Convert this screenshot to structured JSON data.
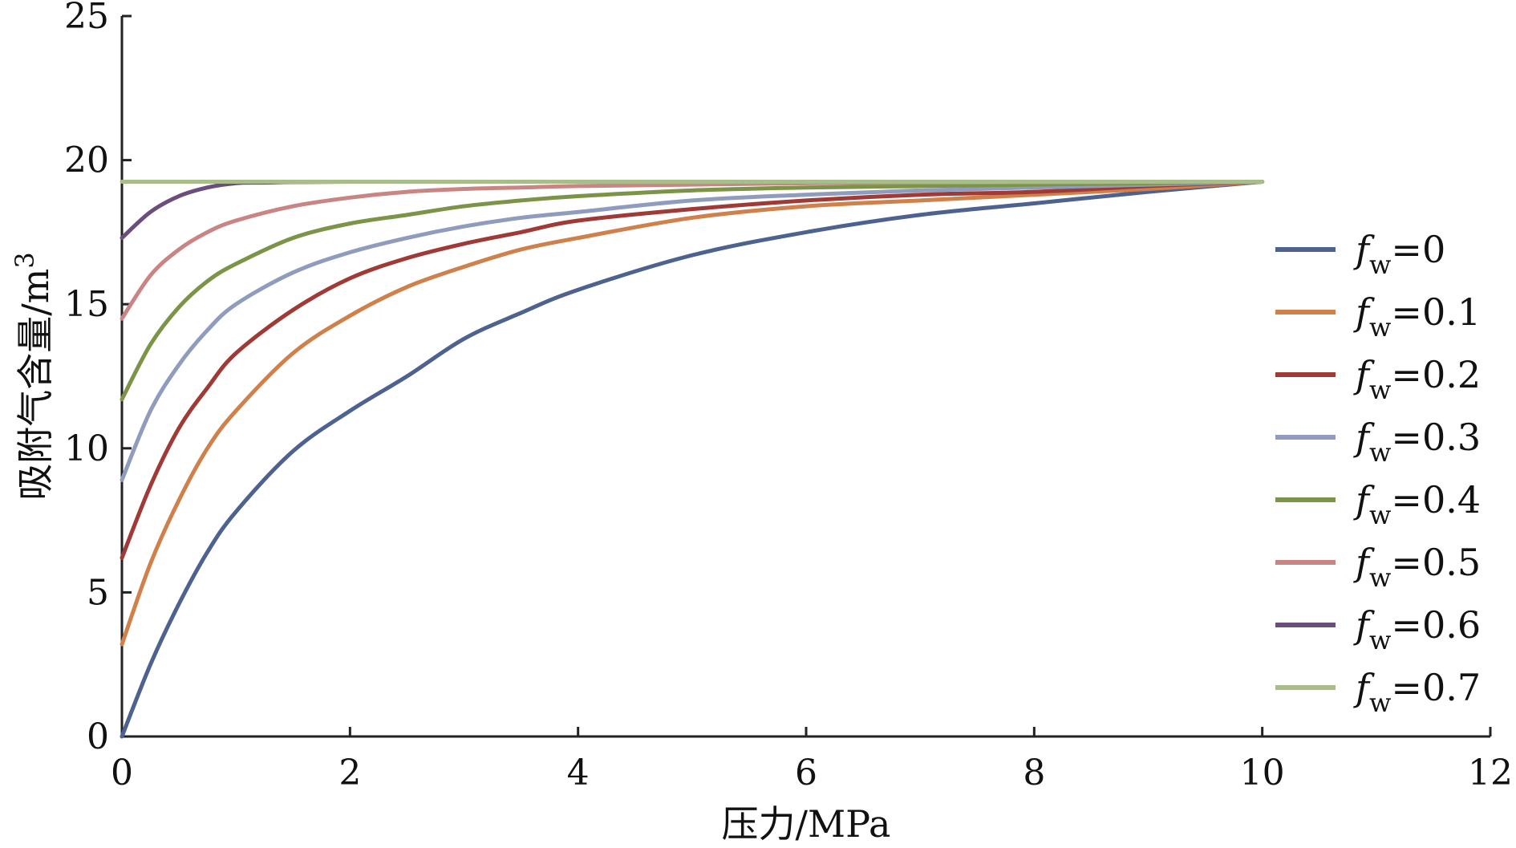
{
  "chart_data": {
    "type": "line",
    "title": "",
    "xlabel": "压力/MPa",
    "ylabel": "吸附气含量/m",
    "ylabel_sup": "3",
    "xlim": [
      0,
      12
    ],
    "ylim": [
      0,
      25
    ],
    "xticks": [
      "0",
      "2",
      "4",
      "6",
      "8",
      "10",
      "12"
    ],
    "yticks": [
      "0",
      "5",
      "10",
      "15",
      "20",
      "25"
    ],
    "grid": false,
    "legend_position": "right",
    "legend_var": "f",
    "legend_sub": "w",
    "series": [
      {
        "name": "=0",
        "color": "#4e6290",
        "x": [
          0,
          0.25,
          0.5,
          0.75,
          1,
          1.5,
          2,
          2.5,
          3,
          3.5,
          4,
          5,
          6,
          7,
          8,
          9,
          10
        ],
        "y": [
          0,
          2.5,
          4.6,
          6.4,
          7.8,
          9.9,
          11.3,
          12.5,
          13.8,
          14.7,
          15.5,
          16.7,
          17.5,
          18.1,
          18.5,
          18.9,
          19.25
        ]
      },
      {
        "name": "=0.1",
        "color": "#d0804a",
        "x": [
          0,
          0.25,
          0.5,
          0.75,
          1,
          1.5,
          2,
          2.5,
          3,
          3.5,
          4,
          5,
          6,
          7,
          8,
          9,
          10
        ],
        "y": [
          3.2,
          6.0,
          8.2,
          10.0,
          11.3,
          13.3,
          14.6,
          15.6,
          16.3,
          16.9,
          17.3,
          18.0,
          18.4,
          18.6,
          18.8,
          19.0,
          19.25
        ]
      },
      {
        "name": "=0.2",
        "color": "#a03a36",
        "x": [
          0,
          0.25,
          0.5,
          0.75,
          1,
          1.5,
          2,
          2.5,
          3,
          3.5,
          4,
          5,
          6,
          7,
          8,
          9,
          10
        ],
        "y": [
          6.2,
          8.7,
          10.7,
          12.1,
          13.3,
          14.8,
          15.9,
          16.6,
          17.1,
          17.5,
          17.9,
          18.3,
          18.6,
          18.8,
          18.9,
          19.1,
          19.25
        ]
      },
      {
        "name": "=0.3",
        "color": "#8f9cbe",
        "x": [
          0,
          0.25,
          0.5,
          0.75,
          1,
          1.5,
          2,
          2.5,
          3,
          3.5,
          4,
          5,
          6,
          7,
          8,
          9,
          10
        ],
        "y": [
          8.9,
          11.3,
          12.9,
          14.1,
          15.0,
          16.1,
          16.8,
          17.3,
          17.7,
          18.0,
          18.2,
          18.6,
          18.8,
          18.95,
          19.05,
          19.15,
          19.25
        ]
      },
      {
        "name": "=0.4",
        "color": "#7c9448",
        "x": [
          0,
          0.25,
          0.5,
          0.75,
          1,
          1.5,
          2,
          2.5,
          3,
          3.5,
          4,
          5,
          6,
          7,
          8,
          9,
          10
        ],
        "y": [
          11.7,
          13.6,
          14.9,
          15.8,
          16.4,
          17.3,
          17.8,
          18.1,
          18.4,
          18.6,
          18.75,
          18.95,
          19.05,
          19.1,
          19.15,
          19.2,
          19.25
        ]
      },
      {
        "name": "=0.5",
        "color": "#c98584",
        "x": [
          0,
          0.25,
          0.5,
          0.75,
          1,
          1.5,
          2,
          2.5,
          3,
          3.5,
          4,
          5,
          6,
          7,
          8,
          9,
          10
        ],
        "y": [
          14.5,
          16.0,
          16.9,
          17.5,
          17.9,
          18.4,
          18.7,
          18.9,
          19.0,
          19.05,
          19.1,
          19.15,
          19.2,
          19.22,
          19.23,
          19.24,
          19.25
        ]
      },
      {
        "name": "=0.6",
        "color": "#6b4e7c",
        "x": [
          0,
          0.25,
          0.5,
          0.75,
          1,
          1.25,
          1.5,
          2,
          3,
          4,
          5,
          6,
          7,
          8,
          9,
          10
        ],
        "y": [
          17.3,
          18.2,
          18.75,
          19.05,
          19.2,
          19.22,
          19.24,
          19.25,
          19.25,
          19.25,
          19.25,
          19.25,
          19.25,
          19.25,
          19.25,
          19.25
        ]
      },
      {
        "name": "=0.7",
        "color": "#a9bd8a",
        "x": [
          0,
          10
        ],
        "y": [
          19.25,
          19.25
        ]
      }
    ]
  }
}
